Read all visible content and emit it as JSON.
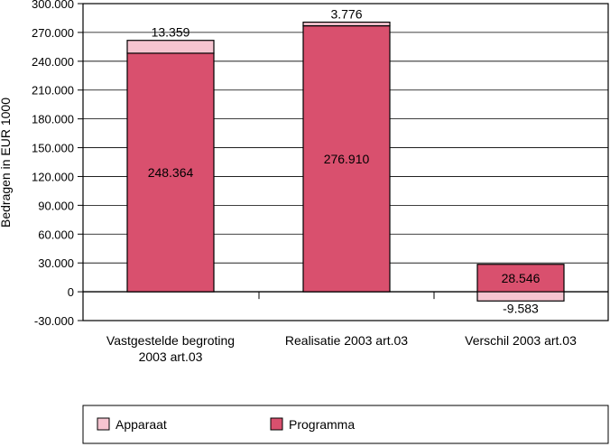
{
  "chart_data": {
    "type": "bar",
    "stacked": true,
    "ylabel": "Bedragen in EUR 1000",
    "ylim": [
      -30000,
      300000
    ],
    "yticks": [
      300000,
      270000,
      240000,
      210000,
      180000,
      150000,
      120000,
      90000,
      60000,
      30000,
      0,
      -30000
    ],
    "ytick_labels": [
      "300.000",
      "270.000",
      "240.000",
      "210.000",
      "180.000",
      "150.000",
      "120.000",
      "90.000",
      "60.000",
      "30.000",
      "0",
      "-30.000"
    ],
    "categories": [
      [
        "Vastgestelde begroting",
        "2003 art.03"
      ],
      [
        "Realisatie 2003 art.03"
      ],
      [
        "Verschil 2003 art.03"
      ]
    ],
    "series": [
      {
        "name": "Programma",
        "color": "#d9506e",
        "values": [
          248364,
          276910,
          28546
        ],
        "labels": [
          "248.364",
          "276.910",
          "28.546"
        ]
      },
      {
        "name": "Apparaat",
        "color": "#f6c4d0",
        "values": [
          13359,
          3776,
          -9583
        ],
        "labels": [
          "13.359",
          "3.776",
          "-9.583"
        ]
      }
    ],
    "grid": true,
    "legend_position": "bottom",
    "legend_order": [
      "Apparaat",
      "Programma"
    ]
  }
}
